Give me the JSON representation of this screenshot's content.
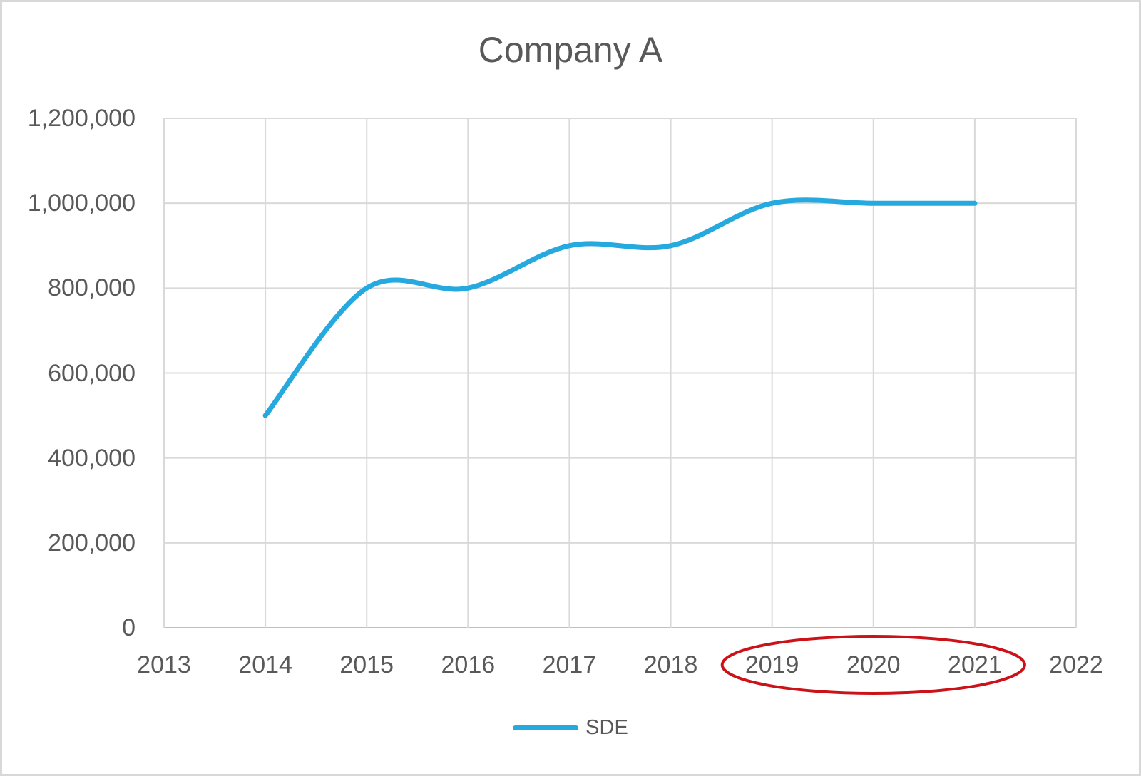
{
  "chart_data": {
    "type": "line",
    "title": "Company A",
    "xlabel": "",
    "ylabel": "",
    "x_ticks": [
      "2013",
      "2014",
      "2015",
      "2016",
      "2017",
      "2018",
      "2019",
      "2020",
      "2021",
      "2022"
    ],
    "y_ticks": [
      "0",
      "200,000",
      "400,000",
      "600,000",
      "800,000",
      "1,000,000",
      "1,200,000"
    ],
    "xlim": [
      2013,
      2022
    ],
    "ylim": [
      0,
      1200000
    ],
    "y_step": 200000,
    "grid": true,
    "series": [
      {
        "name": "SDE",
        "color": "#26A9DF",
        "smooth": true,
        "line_width": 7,
        "x": [
          2014,
          2015,
          2016,
          2017,
          2018,
          2019,
          2020,
          2021
        ],
        "values": [
          500000,
          800000,
          800000,
          900000,
          900000,
          1000000,
          1000000,
          1000000
        ]
      }
    ],
    "legend": {
      "position": "bottom",
      "entries": [
        "SDE"
      ]
    },
    "annotation": {
      "shape": "ellipse",
      "color": "#CB1218",
      "stroke_width": 4,
      "around_x_ticks": [
        "2019",
        "2020",
        "2021"
      ]
    }
  },
  "style": {
    "text_color": "#595959",
    "grid_color": "#D9D9D9",
    "axis_color": "#BFBFBF",
    "frame_color": "#D8D8D8",
    "background": "#FFFFFF"
  }
}
